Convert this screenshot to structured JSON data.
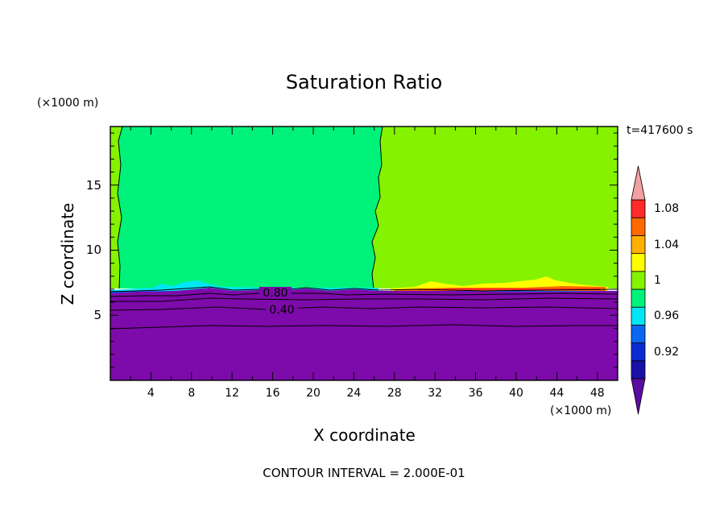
{
  "chart_data": {
    "type": "heatmap",
    "title": "Saturation Ratio",
    "xlabel": "X coordinate",
    "ylabel": "Z coordinate",
    "x_units": "(×1000 m)",
    "z_units": "(×1000 m)",
    "time_label": "t=417600 s",
    "footer": "CONTOUR INTERVAL = 2.000E-01",
    "xlim": [
      0,
      50
    ],
    "ylim": [
      0,
      19.5
    ],
    "x_ticks": [
      "4",
      "8",
      "12",
      "16",
      "20",
      "24",
      "28",
      "32",
      "36",
      "40",
      "44",
      "48"
    ],
    "y_ticks": [
      "5",
      "10",
      "15"
    ],
    "colorbar": {
      "levels": [
        0.9,
        0.92,
        0.94,
        0.96,
        0.98,
        1.0,
        1.02,
        1.04,
        1.06,
        1.08,
        1.1
      ],
      "colors": [
        "#5a0da0",
        "#1a10a8",
        "#0a2ad2",
        "#0b66f0",
        "#00e6f5",
        "#00f27a",
        "#85f200",
        "#ffff00",
        "#ffb000",
        "#ff6a00",
        "#ff2a2a",
        "#f2a0a0"
      ],
      "labels": [
        "0.92",
        "0.96",
        "1",
        "1.04",
        "1.08"
      ],
      "extend": "both"
    },
    "regions": [
      {
        "label": "left upper region",
        "x_range": [
          0,
          26.5
        ],
        "z_range": [
          7.1,
          19.5
        ],
        "value_range": [
          0.98,
          1.0
        ]
      },
      {
        "label": "right upper region",
        "x_range": [
          26.5,
          50
        ],
        "z_range": [
          7.1,
          19.5
        ],
        "value_range": [
          1.0,
          1.02
        ]
      },
      {
        "label": "lower layer",
        "x_range": [
          0,
          50
        ],
        "z_range": [
          0,
          7.1
        ],
        "value_range": [
          0.0,
          0.92
        ]
      }
    ],
    "contour_labels": [
      "0.80",
      "0.40"
    ]
  },
  "colors": {
    "frame": "#000000",
    "lower_layer": "#7d0aaa"
  }
}
